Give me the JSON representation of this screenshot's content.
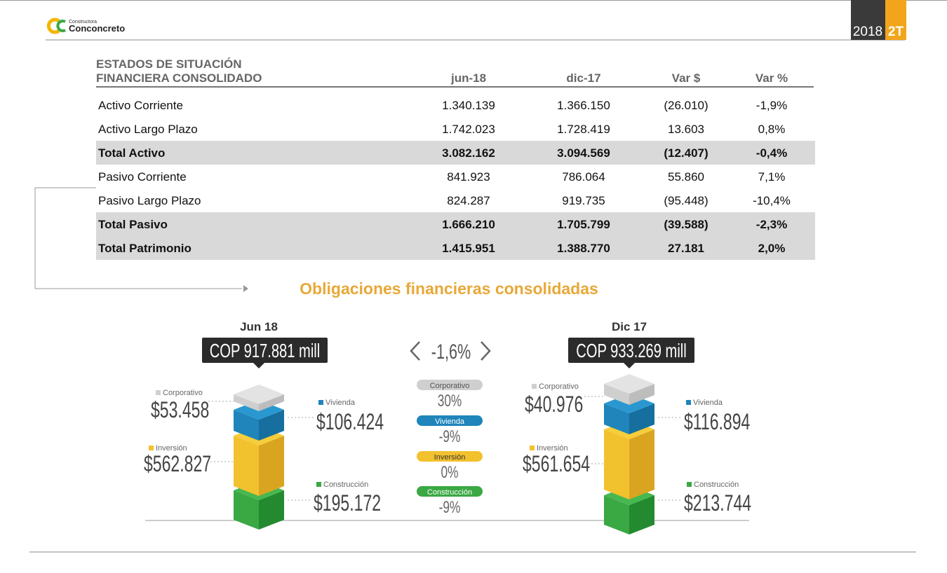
{
  "header": {
    "logo_tagline": "Constructora",
    "logo_name": "Conconcreto",
    "year": "2018",
    "quarter": "2T"
  },
  "table": {
    "title": [
      "ESTADOS DE SITUACIÓN",
      "FINANCIERA CONSOLIDADO"
    ],
    "columns": [
      "jun-18",
      "dic-17",
      "Var $",
      "Var %"
    ],
    "rows": [
      {
        "cells": [
          "Activo Corriente",
          "1.340.139",
          "1.366.150",
          "(26.010)",
          "-1,9%"
        ],
        "total": false
      },
      {
        "cells": [
          "Activo Largo Plazo",
          "1.742.023",
          "1.728.419",
          "13.603",
          "0,8%"
        ],
        "total": false
      },
      {
        "cells": [
          "Total Activo",
          "3.082.162",
          "3.094.569",
          "(12.407)",
          "-0,4%"
        ],
        "total": true
      },
      {
        "cells": [
          "Pasivo Corriente",
          "841.923",
          "786.064",
          "55.860",
          "7,1%"
        ],
        "total": false
      },
      {
        "cells": [
          "Pasivo Largo Plazo",
          "824.287",
          "919.735",
          "(95.448)",
          "-10,4%"
        ],
        "total": false
      },
      {
        "cells": [
          "Total Pasivo",
          "1.666.210",
          "1.705.799",
          "(39.588)",
          "-2,3%"
        ],
        "total": true
      },
      {
        "cells": [
          "Total Patrimonio",
          "1.415.951",
          "1.388.770",
          "27.181",
          "2,0%"
        ],
        "total": true
      }
    ]
  },
  "obligations": {
    "title": "Obligaciones financieras consolidadas",
    "change": "-1,6%",
    "periods": [
      {
        "label": "Jun 18",
        "total": "COP 917.881 mill",
        "values": [
          "$53.458",
          "$106.424",
          "$562.827",
          "$195.172"
        ]
      },
      {
        "label": "Dic 17",
        "total": "COP 933.269 mill",
        "values": [
          "$40.976",
          "$116.894",
          "$561.654",
          "$213.744"
        ]
      }
    ],
    "segments": [
      {
        "name": "Corporativo",
        "change": "30%"
      },
      {
        "name": "Vivienda",
        "change": "-9%"
      },
      {
        "name": "Inversión",
        "change": "0%"
      },
      {
        "name": "Construcción",
        "change": "-9%"
      }
    ]
  }
}
